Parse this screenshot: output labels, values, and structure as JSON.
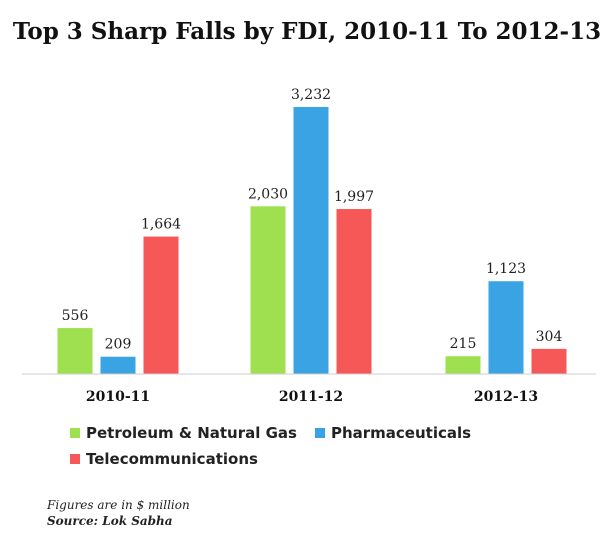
{
  "chart_data": {
    "type": "bar",
    "title": "Top 3 Sharp Falls by FDI, 2010-11 To 2012-13",
    "categories": [
      "2010-11",
      "2011-12",
      "2012-13"
    ],
    "series": [
      {
        "name": "Petroleum & Natural Gas",
        "color": "#9ee04f",
        "values": [
          556,
          2030,
          215
        ],
        "labels": [
          "556",
          "2,030",
          "215"
        ]
      },
      {
        "name": "Pharmaceuticals",
        "color": "#3aa3e3",
        "values": [
          209,
          3232,
          1123
        ],
        "labels": [
          "209",
          "3,232",
          "1,123"
        ]
      },
      {
        "name": "Telecommunications",
        "color": "#f65858",
        "values": [
          1664,
          1997,
          304
        ],
        "labels": [
          "1,664",
          "1,997",
          "304"
        ]
      }
    ],
    "ylim": [
      0,
      3232
    ],
    "grid": false,
    "legend_position": "bottom"
  },
  "footnote": {
    "units": "Figures are in $ million",
    "source": "Source: Lok Sabha"
  }
}
